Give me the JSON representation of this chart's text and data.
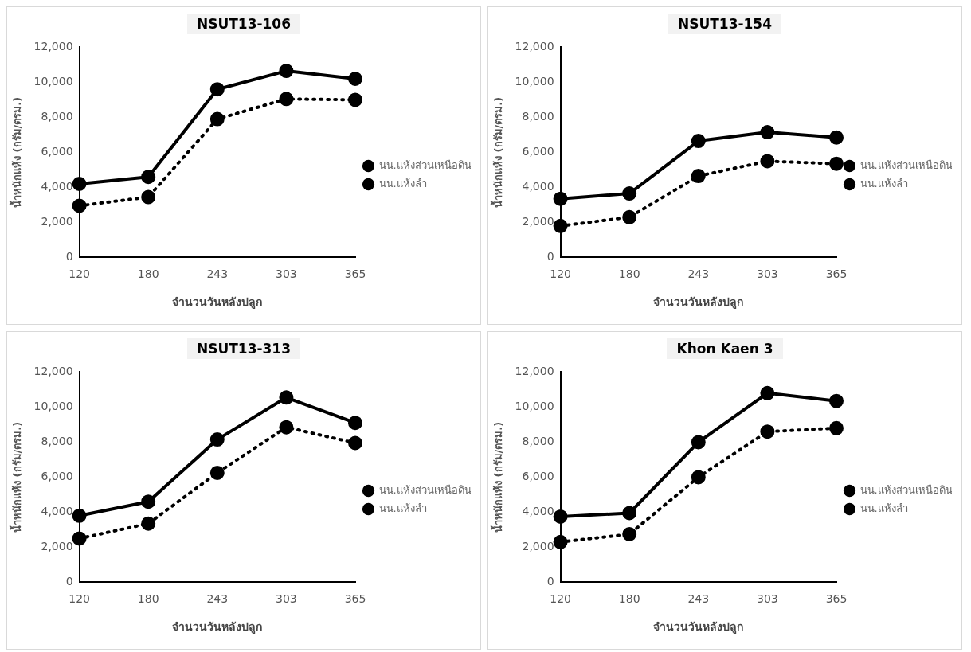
{
  "chart_data": [
    {
      "type": "line",
      "title": "NSUT13-106",
      "xlabel": "จำนวนวันหลังปลูก",
      "ylabel": "น้ำหนักแห้ง (กรัม/ตรม.)",
      "categories": [
        "120",
        "180",
        "243",
        "303",
        "365"
      ],
      "ylim": [
        0,
        12000
      ],
      "yticks": [
        {
          "value": 0,
          "label": "0"
        },
        {
          "value": 2000,
          "label": "2,000"
        },
        {
          "value": 4000,
          "label": "4,000"
        },
        {
          "value": 6000,
          "label": "6,000"
        },
        {
          "value": 8000,
          "label": "8,000"
        },
        {
          "value": 10000,
          "label": "10,000"
        },
        {
          "value": 12000,
          "label": "12,000"
        }
      ],
      "grid": false,
      "legend": "right",
      "marker": "circle",
      "series": [
        {
          "name": "นน.แห้งส่วนเหนือดิน",
          "color": "#000000",
          "line_style": "solid",
          "values": [
            4200,
            4600,
            9600,
            10650,
            10200
          ]
        },
        {
          "name": "นน.แห้งลำ",
          "color": "#000000",
          "line_style": "dotted",
          "values": [
            2950,
            3450,
            7900,
            9050,
            9000
          ]
        }
      ]
    },
    {
      "type": "line",
      "title": "NSUT13-154",
      "xlabel": "จำนวนวันหลังปลูก",
      "ylabel": "น้ำหนักแห้ง (กรัม/ตรม.)",
      "categories": [
        "120",
        "180",
        "243",
        "303",
        "365"
      ],
      "ylim": [
        0,
        12000
      ],
      "yticks": [
        {
          "value": 0,
          "label": "0"
        },
        {
          "value": 2000,
          "label": "2,000"
        },
        {
          "value": 4000,
          "label": "4,000"
        },
        {
          "value": 6000,
          "label": "6,000"
        },
        {
          "value": 8000,
          "label": "8,000"
        },
        {
          "value": 10000,
          "label": "10,000"
        },
        {
          "value": 12000,
          "label": "12,000"
        }
      ],
      "grid": false,
      "legend": "right",
      "marker": "circle",
      "series": [
        {
          "name": "นน.แห้งส่วนเหนือดิน",
          "color": "#000000",
          "line_style": "solid",
          "values": [
            3350,
            3650,
            6650,
            7150,
            6850
          ]
        },
        {
          "name": "นน.แห้งลำ",
          "color": "#000000",
          "line_style": "dotted",
          "values": [
            1800,
            2300,
            4650,
            5500,
            5350
          ]
        }
      ]
    },
    {
      "type": "line",
      "title": "NSUT13-313",
      "xlabel": "จำนวนวันหลังปลูก",
      "ylabel": "น้ำหนักแห้ง (กรัม/ตรม.)",
      "categories": [
        "120",
        "180",
        "243",
        "303",
        "365"
      ],
      "ylim": [
        0,
        12000
      ],
      "yticks": [
        {
          "value": 0,
          "label": "0"
        },
        {
          "value": 2000,
          "label": "2,000"
        },
        {
          "value": 4000,
          "label": "4,000"
        },
        {
          "value": 6000,
          "label": "6,000"
        },
        {
          "value": 8000,
          "label": "8,000"
        },
        {
          "value": 10000,
          "label": "10,000"
        },
        {
          "value": 12000,
          "label": "12,000"
        }
      ],
      "grid": false,
      "legend": "right",
      "marker": "circle",
      "series": [
        {
          "name": "นน.แห้งส่วนเหนือดิน",
          "color": "#000000",
          "line_style": "solid",
          "values": [
            3800,
            4600,
            8150,
            10550,
            9100
          ]
        },
        {
          "name": "นน.แห้งลำ",
          "color": "#000000",
          "line_style": "dotted",
          "values": [
            2500,
            3350,
            6250,
            8850,
            7950
          ]
        }
      ]
    },
    {
      "type": "line",
      "title": "Khon Kaen 3",
      "xlabel": "จำนวนวันหลังปลูก",
      "ylabel": "น้ำหนักแห้ง (กรัม/ตรม.)",
      "categories": [
        "120",
        "180",
        "243",
        "303",
        "365"
      ],
      "ylim": [
        0,
        12000
      ],
      "yticks": [
        {
          "value": 0,
          "label": "0"
        },
        {
          "value": 2000,
          "label": "2,000"
        },
        {
          "value": 4000,
          "label": "4,000"
        },
        {
          "value": 6000,
          "label": "6,000"
        },
        {
          "value": 8000,
          "label": "8,000"
        },
        {
          "value": 10000,
          "label": "10,000"
        },
        {
          "value": 12000,
          "label": "12,000"
        }
      ],
      "grid": false,
      "legend": "right",
      "marker": "circle",
      "series": [
        {
          "name": "นน.แห้งส่วนเหนือดิน",
          "color": "#000000",
          "line_style": "solid",
          "values": [
            3750,
            3950,
            8000,
            10800,
            10350
          ]
        },
        {
          "name": "นน.แห้งลำ",
          "color": "#000000",
          "line_style": "dotted",
          "values": [
            2300,
            2750,
            6000,
            8600,
            8800
          ]
        }
      ]
    }
  ]
}
